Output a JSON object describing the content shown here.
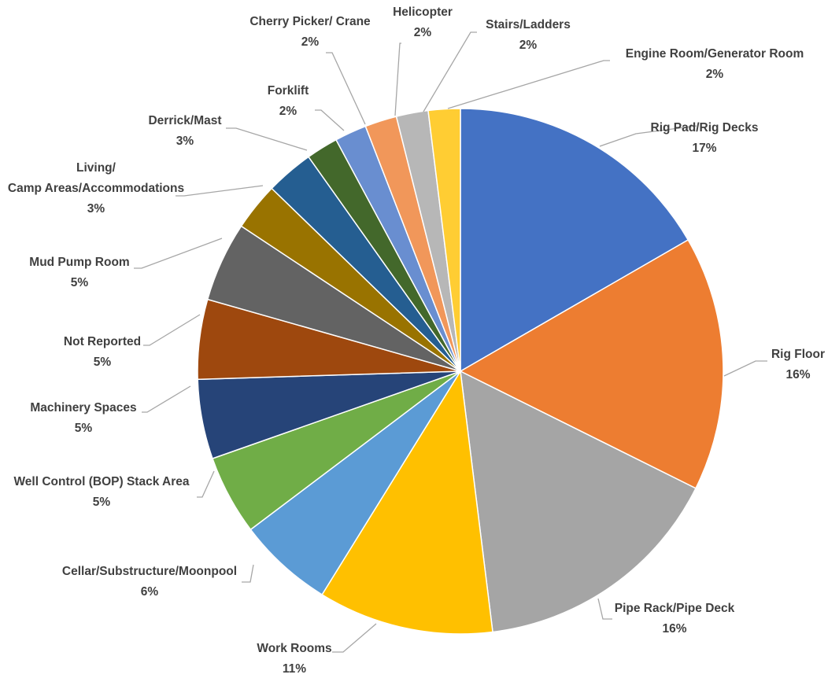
{
  "chart_data": {
    "type": "pie",
    "title": "",
    "start_angle_deg": 0,
    "direction": "clockwise",
    "legend": "none",
    "slices": [
      {
        "name": "Rig Pad/Rig Decks",
        "value": 17,
        "label": "17%",
        "color": "#4472C4"
      },
      {
        "name": "Rig Floor",
        "value": 16,
        "label": "16%",
        "color": "#ED7D31"
      },
      {
        "name": "Pipe Rack/Pipe Deck",
        "value": 16,
        "label": "16%",
        "color": "#A5A5A5"
      },
      {
        "name": "Work Rooms",
        "value": 11,
        "label": "11%",
        "color": "#FFC000"
      },
      {
        "name": "Cellar/Substructure/Moonpool",
        "value": 6,
        "label": "6%",
        "color": "#5B9BD5"
      },
      {
        "name": "Well Control (BOP) Stack Area",
        "value": 5,
        "label": "5%",
        "color": "#70AD47"
      },
      {
        "name": "Machinery Spaces",
        "value": 5,
        "label": "5%",
        "color": "#264478"
      },
      {
        "name": "Not Reported",
        "value": 5,
        "label": "5%",
        "color": "#9E480E"
      },
      {
        "name": "Mud Pump Room",
        "value": 5,
        "label": "5%",
        "color": "#636363"
      },
      {
        "name": "Living/Camp Areas/Accommodations",
        "value": 3,
        "label": "3%",
        "color": "#997300"
      },
      {
        "name": "Derrick/Mast",
        "value": 3,
        "label": "3%",
        "color": "#255E91"
      },
      {
        "name": "Forklift",
        "value": 2,
        "label": "2%",
        "color": "#43682B"
      },
      {
        "name": "Cherry Picker/ Crane",
        "value": 2,
        "label": "2%",
        "color": "#698ED0"
      },
      {
        "name": "Helicopter",
        "value": 2,
        "label": "2%",
        "color": "#F1975A"
      },
      {
        "name": "Stairs/Ladders",
        "value": 2,
        "label": "2%",
        "color": "#B7B7B7"
      },
      {
        "name": "Engine Room/Generator Room",
        "value": 2,
        "label": "2%",
        "color": "#FFCD33"
      }
    ]
  }
}
